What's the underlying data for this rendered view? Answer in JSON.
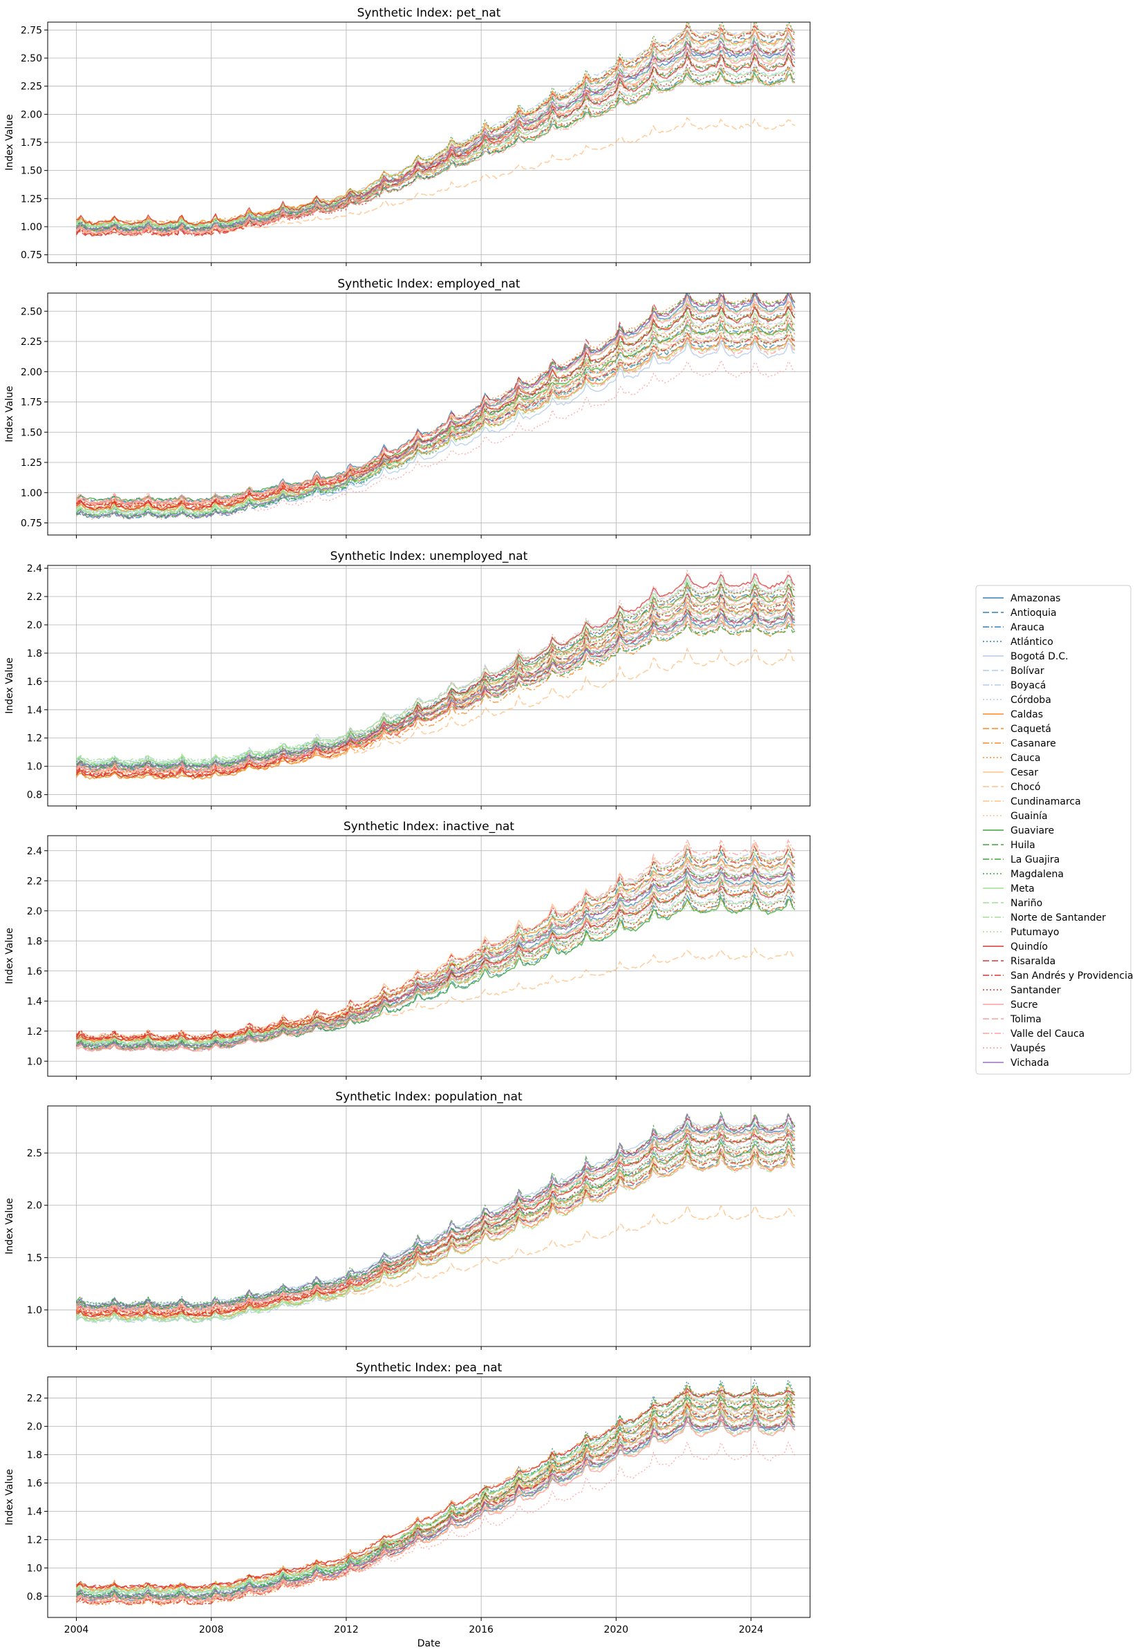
{
  "chart_data": [
    {
      "type": "line",
      "title": "Synthetic Index: pet_nat",
      "ylabel": "Index Value",
      "xlabel": "",
      "ylim": [
        0.68,
        2.82
      ],
      "yticks": [
        "0.75",
        "1.00",
        "1.25",
        "1.50",
        "1.75",
        "2.00",
        "2.25",
        "2.50",
        "2.75"
      ],
      "ytick_values": [
        0.75,
        1.0,
        1.25,
        1.5,
        1.75,
        2.0,
        2.25,
        2.5,
        2.75
      ],
      "xlim": [
        2003.15,
        2025.75
      ],
      "xticks": [
        "2004",
        "2008",
        "2012",
        "2016",
        "2020",
        "2024"
      ],
      "grid": true,
      "band": {
        "start_low": 0.93,
        "start_high": 1.05,
        "end_low": 2.25,
        "end_high": 2.75
      },
      "outlier": {
        "series": "Chocó",
        "end": 1.9
      }
    },
    {
      "type": "line",
      "title": "Synthetic Index: employed_nat",
      "ylabel": "Index Value",
      "xlabel": "",
      "ylim": [
        0.65,
        2.65
      ],
      "yticks": [
        "0.75",
        "1.00",
        "1.25",
        "1.50",
        "1.75",
        "2.00",
        "2.25",
        "2.50"
      ],
      "ytick_values": [
        0.75,
        1.0,
        1.25,
        1.5,
        1.75,
        2.0,
        2.25,
        2.5
      ],
      "xlim": [
        2003.15,
        2025.75
      ],
      "xticks": [
        "2004",
        "2008",
        "2012",
        "2016",
        "2020",
        "2024"
      ],
      "grid": true,
      "band": {
        "start_low": 0.8,
        "start_high": 0.95,
        "end_low": 2.15,
        "end_high": 2.6
      },
      "outlier": {
        "series": "Vaupés",
        "end": 2.0
      }
    },
    {
      "type": "line",
      "title": "Synthetic Index: unemployed_nat",
      "ylabel": "Index Value",
      "xlabel": "",
      "ylim": [
        0.72,
        2.42
      ],
      "yticks": [
        "0.8",
        "1.0",
        "1.2",
        "1.4",
        "1.6",
        "1.8",
        "2.0",
        "2.2",
        "2.4"
      ],
      "ytick_values": [
        0.8,
        1.0,
        1.2,
        1.4,
        1.6,
        1.8,
        2.0,
        2.2,
        2.4
      ],
      "xlim": [
        2003.15,
        2025.75
      ],
      "xticks": [
        "2004",
        "2008",
        "2012",
        "2016",
        "2020",
        "2024"
      ],
      "grid": true,
      "band": {
        "start_low": 0.92,
        "start_high": 1.05,
        "end_low": 1.95,
        "end_high": 2.3
      },
      "outlier": {
        "series": "Chocó",
        "end": 1.75
      }
    },
    {
      "type": "line",
      "title": "Synthetic Index: inactive_nat",
      "ylabel": "Index Value",
      "xlabel": "",
      "ylim": [
        0.9,
        2.5
      ],
      "yticks": [
        "1.0",
        "1.2",
        "1.4",
        "1.6",
        "1.8",
        "2.0",
        "2.2",
        "2.4"
      ],
      "ytick_values": [
        1.0,
        1.2,
        1.4,
        1.6,
        1.8,
        2.0,
        2.2,
        2.4
      ],
      "xlim": [
        2003.15,
        2025.75
      ],
      "xticks": [
        "2004",
        "2008",
        "2012",
        "2016",
        "2020",
        "2024"
      ],
      "grid": true,
      "band": {
        "start_low": 1.08,
        "start_high": 1.18,
        "end_low": 2.0,
        "end_high": 2.4
      },
      "outlier": {
        "series": "Chocó",
        "end": 1.7
      }
    },
    {
      "type": "line",
      "title": "Synthetic Index: population_nat",
      "ylabel": "Index Value",
      "xlabel": "",
      "ylim": [
        0.65,
        2.95
      ],
      "yticks": [
        "1.0",
        "1.5",
        "2.0",
        "2.5"
      ],
      "ytick_values": [
        1.0,
        1.5,
        2.0,
        2.5
      ],
      "xlim": [
        2003.15,
        2025.75
      ],
      "xticks": [
        "2004",
        "2008",
        "2012",
        "2016",
        "2020",
        "2024"
      ],
      "grid": true,
      "band": {
        "start_low": 0.9,
        "start_high": 1.08,
        "end_low": 2.35,
        "end_high": 2.8
      },
      "outlier": {
        "series": "Chocó",
        "end": 1.9
      }
    },
    {
      "type": "line",
      "title": "Synthetic Index: pea_nat",
      "ylabel": "Index Value",
      "xlabel": "Date",
      "ylim": [
        0.65,
        2.35
      ],
      "yticks": [
        "0.8",
        "1.0",
        "1.2",
        "1.4",
        "1.6",
        "1.8",
        "2.0",
        "2.2"
      ],
      "ytick_values": [
        0.8,
        1.0,
        1.2,
        1.4,
        1.6,
        1.8,
        2.0,
        2.2
      ],
      "xlim": [
        2003.15,
        2025.75
      ],
      "xticks": [
        "2004",
        "2008",
        "2012",
        "2016",
        "2020",
        "2024"
      ],
      "grid": true,
      "band": {
        "start_low": 0.75,
        "start_high": 0.88,
        "end_low": 1.95,
        "end_high": 2.25
      },
      "outlier": {
        "series": "Vaupés",
        "end": 1.8
      }
    }
  ],
  "x_range": [
    2004.0,
    2025.3
  ],
  "legend": {
    "placement": "right",
    "series": [
      {
        "name": "Amazonas",
        "color": "#1f77b4",
        "dash": "solid"
      },
      {
        "name": "Antioquia",
        "color": "#1f77b4",
        "dash": "dashed"
      },
      {
        "name": "Arauca",
        "color": "#1f77b4",
        "dash": "dashdot"
      },
      {
        "name": "Atlántico",
        "color": "#1f77b4",
        "dash": "dotted"
      },
      {
        "name": "Bogotá D.C.",
        "color": "#aec7e8",
        "dash": "solid"
      },
      {
        "name": "Bolívar",
        "color": "#aec7e8",
        "dash": "dashed"
      },
      {
        "name": "Boyacá",
        "color": "#aec7e8",
        "dash": "dashdot"
      },
      {
        "name": "Córdoba",
        "color": "#aec7e8",
        "dash": "dotted"
      },
      {
        "name": "Caldas",
        "color": "#ff7f0e",
        "dash": "solid"
      },
      {
        "name": "Caquetá",
        "color": "#ff7f0e",
        "dash": "dashed"
      },
      {
        "name": "Casanare",
        "color": "#ff7f0e",
        "dash": "dashdot"
      },
      {
        "name": "Cauca",
        "color": "#ff7f0e",
        "dash": "dotted"
      },
      {
        "name": "Cesar",
        "color": "#ffbb78",
        "dash": "solid"
      },
      {
        "name": "Chocó",
        "color": "#ffbb78",
        "dash": "dashed"
      },
      {
        "name": "Cundinamarca",
        "color": "#ffbb78",
        "dash": "dashdot"
      },
      {
        "name": "Guainía",
        "color": "#ffbb78",
        "dash": "dotted"
      },
      {
        "name": "Guaviare",
        "color": "#2ca02c",
        "dash": "solid"
      },
      {
        "name": "Huila",
        "color": "#2ca02c",
        "dash": "dashed"
      },
      {
        "name": "La Guajira",
        "color": "#2ca02c",
        "dash": "dashdot"
      },
      {
        "name": "Magdalena",
        "color": "#2ca02c",
        "dash": "dotted"
      },
      {
        "name": "Meta",
        "color": "#98df8a",
        "dash": "solid"
      },
      {
        "name": "Nariño",
        "color": "#98df8a",
        "dash": "dashed"
      },
      {
        "name": "Norte de Santander",
        "color": "#98df8a",
        "dash": "dashdot"
      },
      {
        "name": "Putumayo",
        "color": "#98df8a",
        "dash": "dotted"
      },
      {
        "name": "Quindío",
        "color": "#d62728",
        "dash": "solid"
      },
      {
        "name": "Risaralda",
        "color": "#d62728",
        "dash": "dashed"
      },
      {
        "name": "San Andrés y Providencia",
        "color": "#d62728",
        "dash": "dashdot"
      },
      {
        "name": "Santander",
        "color": "#d62728",
        "dash": "dotted"
      },
      {
        "name": "Sucre",
        "color": "#ff9896",
        "dash": "solid"
      },
      {
        "name": "Tolima",
        "color": "#ff9896",
        "dash": "dashed"
      },
      {
        "name": "Valle del Cauca",
        "color": "#ff9896",
        "dash": "dashdot"
      },
      {
        "name": "Vaupés",
        "color": "#ff9896",
        "dash": "dotted"
      },
      {
        "name": "Vichada",
        "color": "#9467bd",
        "dash": "solid"
      }
    ]
  }
}
